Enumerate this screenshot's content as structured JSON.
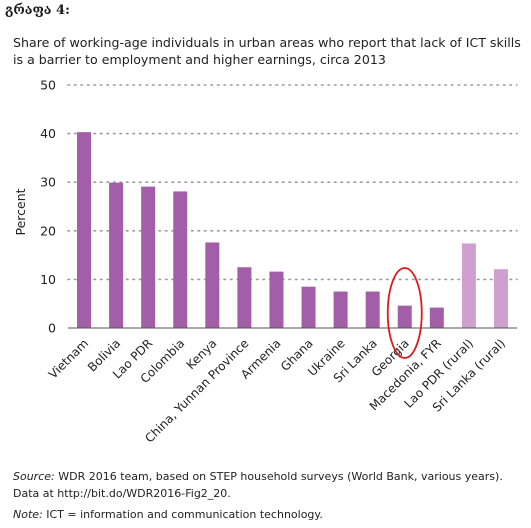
{
  "heading": "გრაფა 4:",
  "chart_data": {
    "type": "bar",
    "title": "Share of working-age individuals in urban areas who report that lack of ICT skills is a barrier to employment and higher earnings, circa 2013",
    "ylabel": "Percent",
    "xlabel": "",
    "ylim": [
      0,
      50
    ],
    "yticks": [
      0,
      10,
      20,
      30,
      40,
      50
    ],
    "grid": true,
    "categories": [
      "Vietnam",
      "Bolivia",
      "Lao PDR",
      "Colombia",
      "Kenya",
      "China, Yunnan Province",
      "Armenia",
      "Ghana",
      "Ukraine",
      "Sri Lanka",
      "Georgia",
      "Macedonia, FYR",
      "Lao PDR (rural)",
      "Sri Lanka (rural)"
    ],
    "values": [
      40.3,
      29.9,
      29.1,
      28.1,
      17.6,
      12.5,
      11.6,
      8.5,
      7.5,
      7.5,
      4.6,
      4.2,
      17.4,
      12.1
    ],
    "bar_colors": [
      "#a35ea8",
      "#a35ea8",
      "#a35ea8",
      "#a35ea8",
      "#a35ea8",
      "#a35ea8",
      "#a35ea8",
      "#a35ea8",
      "#a35ea8",
      "#a35ea8",
      "#a35ea8",
      "#a35ea8",
      "#cf9fd0",
      "#cf9fd0"
    ],
    "highlight": {
      "category": "Georgia",
      "color": "#e0191c"
    }
  },
  "footer": {
    "source_label": "Source:",
    "source_text": " WDR 2016 team, based on STEP household surveys (World Bank, various years). Data at http://bit.do/WDR2016-Fig2_20.",
    "note_label": "Note:",
    "note_text": " ICT = information and communication technology."
  }
}
